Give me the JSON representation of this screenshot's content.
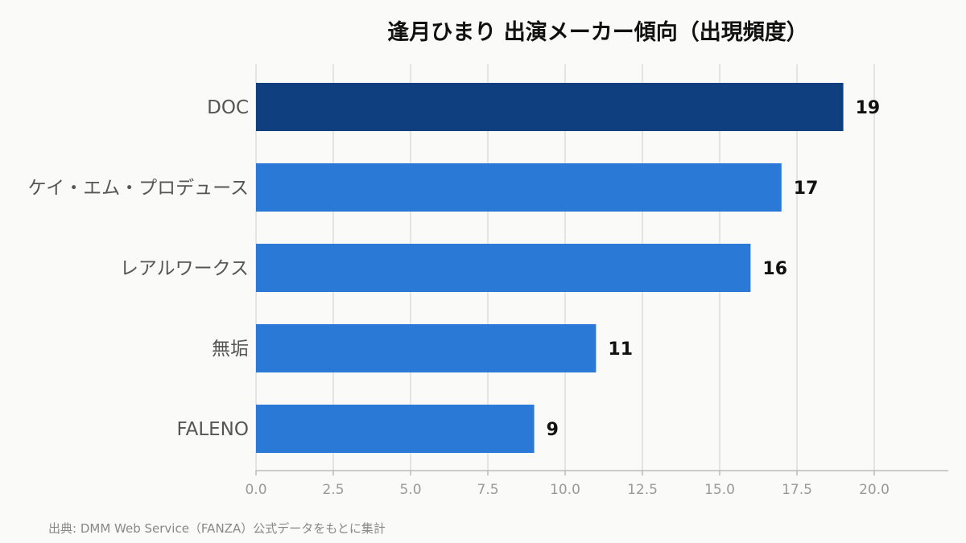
{
  "chart_data": {
    "type": "bar",
    "orientation": "horizontal",
    "title": "逢月ひまり 出演メーカー傾向（出現頻度）",
    "categories": [
      "DOC",
      "ケイ・エム・プロデュース",
      "レアルワークス",
      "無垢",
      "FALENO"
    ],
    "values": [
      19,
      17,
      16,
      11,
      9
    ],
    "data_labels": [
      "19",
      "17",
      "16",
      "11",
      "9"
    ],
    "xlim": [
      0,
      22.5
    ],
    "xticks": [
      0.0,
      2.5,
      5.0,
      7.5,
      10.0,
      12.5,
      15.0,
      17.5,
      20.0
    ],
    "xtick_labels": [
      "0.0",
      "2.5",
      "5.0",
      "7.5",
      "10.0",
      "12.5",
      "15.0",
      "17.5",
      "20.0"
    ],
    "xlabel": "",
    "ylabel": "",
    "grid": "vertical",
    "legend": "none",
    "colors": {
      "highlight": "#0f3f7f",
      "bar": "#2a79d6",
      "grid": "#dcdcdc",
      "axis": "#bbbbbb"
    }
  },
  "source_note": "出典: DMM Web Service（FANZA）公式データをもとに集計"
}
